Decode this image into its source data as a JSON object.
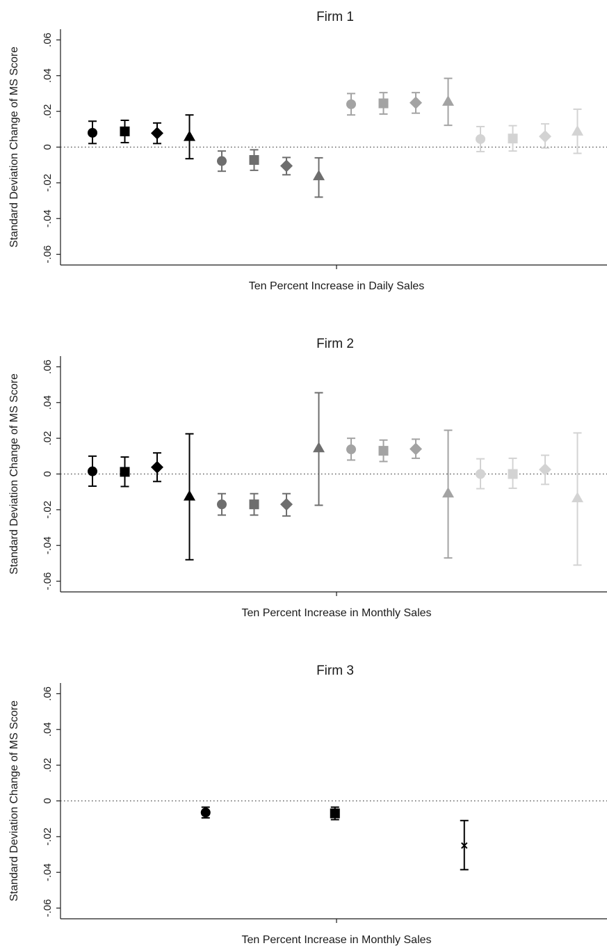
{
  "chart_data": [
    {
      "type": "scatter",
      "title": "Firm 1",
      "xlabel": "Ten Percent Increase in Daily Sales",
      "ylabel": "Standard Deviation Change of MS Score",
      "ylim": [
        -0.066,
        0.066
      ],
      "yticks": [
        -0.06,
        -0.04,
        -0.02,
        0,
        0.02,
        0.04,
        0.06
      ],
      "ytick_labels": [
        "-.06",
        "-.04",
        "-.02",
        "0",
        ".02",
        ".04",
        ".06"
      ],
      "grid": false,
      "reference_line": 0,
      "points": [
        {
          "pos": 1,
          "est": 0.008,
          "lo": 0.002,
          "hi": 0.0145,
          "marker": "circle",
          "color": "#000000"
        },
        {
          "pos": 2,
          "est": 0.0088,
          "lo": 0.0025,
          "hi": 0.015,
          "marker": "square",
          "color": "#000000"
        },
        {
          "pos": 3,
          "est": 0.0078,
          "lo": 0.002,
          "hi": 0.0135,
          "marker": "diamond",
          "color": "#000000"
        },
        {
          "pos": 4,
          "est": 0.0058,
          "lo": -0.0065,
          "hi": 0.018,
          "marker": "triangle",
          "color": "#000000"
        },
        {
          "pos": 5,
          "est": -0.0078,
          "lo": -0.0135,
          "hi": -0.0022,
          "marker": "circle",
          "color": "#6e6e6e"
        },
        {
          "pos": 6,
          "est": -0.0072,
          "lo": -0.013,
          "hi": -0.0015,
          "marker": "square",
          "color": "#6e6e6e"
        },
        {
          "pos": 7,
          "est": -0.0105,
          "lo": -0.0155,
          "hi": -0.0058,
          "marker": "diamond",
          "color": "#6e6e6e"
        },
        {
          "pos": 8,
          "est": -0.0162,
          "lo": -0.028,
          "hi": -0.006,
          "marker": "triangle",
          "color": "#6e6e6e"
        },
        {
          "pos": 9,
          "est": 0.024,
          "lo": 0.018,
          "hi": 0.03,
          "marker": "circle",
          "color": "#a3a3a3"
        },
        {
          "pos": 10,
          "est": 0.0245,
          "lo": 0.0185,
          "hi": 0.0305,
          "marker": "square",
          "color": "#a3a3a3"
        },
        {
          "pos": 11,
          "est": 0.0248,
          "lo": 0.019,
          "hi": 0.0305,
          "marker": "diamond",
          "color": "#a3a3a3"
        },
        {
          "pos": 12,
          "est": 0.0255,
          "lo": 0.0122,
          "hi": 0.0385,
          "marker": "triangle",
          "color": "#a3a3a3"
        },
        {
          "pos": 13,
          "est": 0.0045,
          "lo": -0.0025,
          "hi": 0.0115,
          "marker": "circle",
          "color": "#d3d3d3"
        },
        {
          "pos": 14,
          "est": 0.0048,
          "lo": -0.0022,
          "hi": 0.012,
          "marker": "square",
          "color": "#d3d3d3"
        },
        {
          "pos": 15,
          "est": 0.006,
          "lo": -0.0005,
          "hi": 0.013,
          "marker": "diamond",
          "color": "#d3d3d3"
        },
        {
          "pos": 16,
          "est": 0.0088,
          "lo": -0.0035,
          "hi": 0.0212,
          "marker": "triangle",
          "color": "#d3d3d3"
        }
      ]
    },
    {
      "type": "scatter",
      "title": "Firm 2",
      "xlabel": "Ten Percent Increase in Monthly Sales",
      "ylabel": "Standard Deviation Change of MS Score",
      "ylim": [
        -0.066,
        0.066
      ],
      "yticks": [
        -0.06,
        -0.04,
        -0.02,
        0,
        0.02,
        0.04,
        0.06
      ],
      "ytick_labels": [
        "-.06",
        "-.04",
        "-.02",
        "0",
        ".02",
        ".04",
        ".06"
      ],
      "grid": false,
      "reference_line": 0,
      "points": [
        {
          "pos": 1,
          "est": 0.0015,
          "lo": -0.0068,
          "hi": 0.01,
          "marker": "circle",
          "color": "#000000"
        },
        {
          "pos": 2,
          "est": 0.0012,
          "lo": -0.007,
          "hi": 0.0095,
          "marker": "square",
          "color": "#000000"
        },
        {
          "pos": 3,
          "est": 0.0038,
          "lo": -0.0042,
          "hi": 0.0118,
          "marker": "diamond",
          "color": "#000000"
        },
        {
          "pos": 4,
          "est": -0.0125,
          "lo": -0.048,
          "hi": 0.0225,
          "marker": "triangle",
          "color": "#000000"
        },
        {
          "pos": 5,
          "est": -0.017,
          "lo": -0.023,
          "hi": -0.011,
          "marker": "circle",
          "color": "#6e6e6e"
        },
        {
          "pos": 6,
          "est": -0.017,
          "lo": -0.023,
          "hi": -0.011,
          "marker": "square",
          "color": "#6e6e6e"
        },
        {
          "pos": 7,
          "est": -0.017,
          "lo": -0.0235,
          "hi": -0.011,
          "marker": "diamond",
          "color": "#6e6e6e"
        },
        {
          "pos": 8,
          "est": 0.0145,
          "lo": -0.0175,
          "hi": 0.0455,
          "marker": "triangle",
          "color": "#6e6e6e"
        },
        {
          "pos": 9,
          "est": 0.0138,
          "lo": 0.0078,
          "hi": 0.02,
          "marker": "circle",
          "color": "#a3a3a3"
        },
        {
          "pos": 10,
          "est": 0.013,
          "lo": 0.007,
          "hi": 0.019,
          "marker": "square",
          "color": "#a3a3a3"
        },
        {
          "pos": 11,
          "est": 0.014,
          "lo": 0.0088,
          "hi": 0.0195,
          "marker": "diamond",
          "color": "#a3a3a3"
        },
        {
          "pos": 12,
          "est": -0.0108,
          "lo": -0.047,
          "hi": 0.0245,
          "marker": "triangle",
          "color": "#a3a3a3"
        },
        {
          "pos": 13,
          "est": 0.0,
          "lo": -0.0082,
          "hi": 0.0085,
          "marker": "circle",
          "color": "#d3d3d3"
        },
        {
          "pos": 14,
          "est": 0.0,
          "lo": -0.008,
          "hi": 0.0088,
          "marker": "square",
          "color": "#d3d3d3"
        },
        {
          "pos": 15,
          "est": 0.0025,
          "lo": -0.0058,
          "hi": 0.0105,
          "marker": "diamond",
          "color": "#d3d3d3"
        },
        {
          "pos": 16,
          "est": -0.0135,
          "lo": -0.051,
          "hi": 0.023,
          "marker": "triangle",
          "color": "#d3d3d3"
        }
      ]
    },
    {
      "type": "scatter",
      "title": "Firm 3",
      "xlabel": "Ten Percent Increase in Monthly Sales",
      "ylabel": "Standard Deviation Change of MS Score",
      "ylim": [
        -0.066,
        0.066
      ],
      "yticks": [
        -0.06,
        -0.04,
        -0.02,
        0,
        0.02,
        0.04,
        0.06
      ],
      "ytick_labels": [
        "-.06",
        "-.04",
        "-.02",
        "0",
        ".02",
        ".04",
        ".06"
      ],
      "grid": false,
      "reference_line": 0,
      "points": [
        {
          "pos": 4.5,
          "est": -0.0065,
          "lo": -0.0095,
          "hi": -0.0035,
          "marker": "circle",
          "color": "#000000"
        },
        {
          "pos": 8.5,
          "est": -0.007,
          "lo": -0.0105,
          "hi": -0.0035,
          "marker": "square",
          "color": "#000000"
        },
        {
          "pos": 12.5,
          "est": -0.025,
          "lo": -0.0385,
          "hi": -0.011,
          "marker": "x",
          "color": "#000000"
        }
      ]
    }
  ]
}
